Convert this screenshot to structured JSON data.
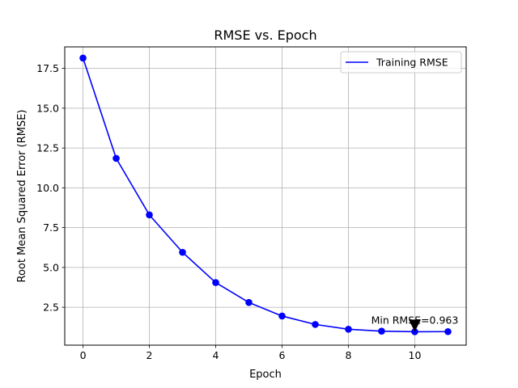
{
  "chart_data": {
    "type": "line",
    "title": "RMSE vs. Epoch",
    "xlabel": "Epoch",
    "ylabel": "Root Mean Squared Error (RMSE)",
    "xlim": [
      -0.55,
      11.55
    ],
    "ylim": [
      0.12,
      18.85
    ],
    "xticks": [
      0,
      2,
      4,
      6,
      8,
      10
    ],
    "xtick_labels": [
      "0",
      "2",
      "4",
      "6",
      "8",
      "10"
    ],
    "yticks": [
      2.5,
      5.0,
      7.5,
      10.0,
      12.5,
      15.0,
      17.5
    ],
    "ytick_labels": [
      "2.5",
      "5.0",
      "7.5",
      "10.0",
      "12.5",
      "15.0",
      "17.5"
    ],
    "grid": true,
    "legend_position": "upper right",
    "series": [
      {
        "name": "Training RMSE",
        "color": "#0000ff",
        "marker": "circle",
        "x": [
          0,
          1,
          2,
          3,
          4,
          5,
          6,
          7,
          8,
          9,
          10,
          11
        ],
        "y": [
          18.15,
          11.85,
          8.3,
          5.95,
          4.05,
          2.8,
          1.95,
          1.42,
          1.12,
          1.0,
          0.963,
          0.97
        ]
      }
    ],
    "annotation": {
      "text": "Min RMSE=0.963",
      "x": 10,
      "y": 0.963,
      "arrow_color": "#000000"
    }
  }
}
